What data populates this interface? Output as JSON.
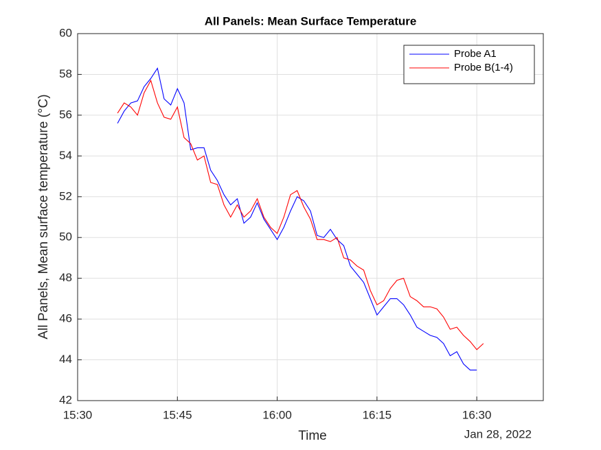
{
  "chart_data": {
    "type": "line",
    "title": "All Panels: Mean Surface Temperature",
    "xlabel": "Time",
    "xlabel_annotation": "Jan 28, 2022",
    "ylabel": "All Panels, Mean surface temperature (°C)",
    "x": [
      "15:36",
      "15:37",
      "15:38",
      "15:39",
      "15:40",
      "15:41",
      "15:42",
      "15:43",
      "15:44",
      "15:45",
      "15:46",
      "15:47",
      "15:48",
      "15:49",
      "15:50",
      "15:51",
      "15:52",
      "15:53",
      "15:54",
      "15:55",
      "15:56",
      "15:57",
      "15:58",
      "15:59",
      "16:00",
      "16:01",
      "16:02",
      "16:03",
      "16:04",
      "16:05",
      "16:06",
      "16:07",
      "16:08",
      "16:09",
      "16:10",
      "16:11",
      "16:12",
      "16:13",
      "16:14",
      "16:15",
      "16:16",
      "16:17",
      "16:18",
      "16:19",
      "16:20",
      "16:21",
      "16:22",
      "16:23",
      "16:24",
      "16:25",
      "16:26",
      "16:27",
      "16:28",
      "16:29",
      "16:30",
      "16:31"
    ],
    "series": [
      {
        "name": "Probe A1",
        "color": "#0000ff",
        "values": [
          55.6,
          56.2,
          56.6,
          56.7,
          57.4,
          57.8,
          58.3,
          56.8,
          56.5,
          57.3,
          56.6,
          54.3,
          54.4,
          54.4,
          53.3,
          52.8,
          52.1,
          51.6,
          51.9,
          50.7,
          51.0,
          51.7,
          50.9,
          50.4,
          49.9,
          50.5,
          51.3,
          52.0,
          51.8,
          51.3,
          50.1,
          50.0,
          50.4,
          49.9,
          49.6,
          48.6,
          48.2,
          47.8,
          47.0,
          46.2,
          46.6,
          47.0,
          47.0,
          46.7,
          46.2,
          45.6,
          45.4,
          45.2,
          45.1,
          44.8,
          44.2,
          44.4,
          43.8,
          43.5,
          43.5,
          null
        ]
      },
      {
        "name": "Probe B(1-4)",
        "color": "#ff0000",
        "values": [
          56.1,
          56.6,
          56.4,
          56.0,
          57.1,
          57.7,
          56.6,
          55.9,
          55.8,
          56.4,
          54.9,
          54.6,
          53.8,
          54.0,
          52.7,
          52.6,
          51.6,
          51.0,
          51.6,
          51.0,
          51.3,
          51.9,
          51.0,
          50.5,
          50.2,
          51.0,
          52.1,
          52.3,
          51.5,
          50.9,
          49.9,
          49.9,
          49.8,
          50.0,
          49.0,
          48.9,
          48.6,
          48.4,
          47.4,
          46.7,
          46.9,
          47.5,
          47.9,
          48.0,
          47.1,
          46.9,
          46.6,
          46.6,
          46.5,
          46.1,
          45.5,
          45.6,
          45.2,
          44.9,
          44.5,
          44.8
        ]
      }
    ],
    "xlim": [
      "15:30",
      "16:40"
    ],
    "xticks": [
      "15:30",
      "15:45",
      "16:00",
      "16:15",
      "16:30"
    ],
    "ylim": [
      42,
      60
    ],
    "yticks": [
      42,
      44,
      46,
      48,
      50,
      52,
      54,
      56,
      58,
      60
    ],
    "grid": true,
    "legend": "upper right"
  }
}
